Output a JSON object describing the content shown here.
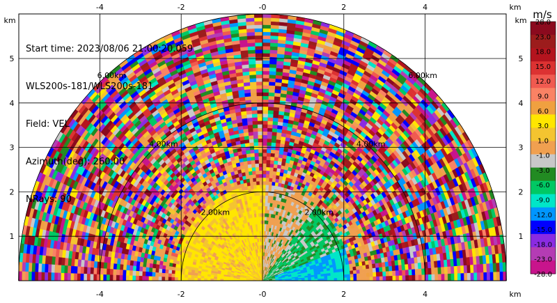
{
  "info": {
    "line1": "Start time: 2023/08/06 21:00:20.059",
    "line2": "WLS200s-181/WLS200s-181",
    "line3": "Field: VEL",
    "line4": "Azimuth(deg): 260.00",
    "line5": "NRays: 90"
  },
  "chart_data": {
    "type": "heatmap",
    "description_of_geometry": "RHI-style range/height sector plot",
    "x_axis": {
      "unit": "km",
      "range": [
        -6,
        6
      ],
      "ticks": [
        -4,
        -2,
        0,
        2,
        4
      ],
      "tick_labels": [
        "-4",
        "-2",
        "-0",
        "2",
        "4"
      ]
    },
    "y_axis": {
      "unit": "km",
      "range": [
        0,
        5.85
      ],
      "ticks": [
        1,
        2,
        3,
        4,
        5
      ],
      "tick_labels": [
        "1",
        "2",
        "3",
        "4",
        "5"
      ]
    },
    "range_rings": [
      {
        "range_km": 2,
        "label": "2.00km"
      },
      {
        "range_km": 4,
        "label": "4.00km"
      },
      {
        "range_km": 6,
        "label": "6.00km"
      }
    ],
    "max_range_km": 6,
    "colorbar": {
      "unit": "m/s",
      "labels": [
        "28.0",
        "23.0",
        "18.0",
        "15.0",
        "12.0",
        "9.0",
        "6.0",
        "3.0",
        "1.0",
        "-1.0",
        "-3.0",
        "-6.0",
        "-9.0",
        "-12.0",
        "-15.0",
        "-18.0",
        "-23.0",
        "-28.0"
      ],
      "colors": [
        "#8b0a1e",
        "#9c1c1c",
        "#b4141e",
        "#dc3232",
        "#f05a50",
        "#fa8264",
        "#f0a040",
        "#ffe600",
        "#f4c430",
        "#f0a050",
        "#c8c8c8",
        "#228b22",
        "#00c864",
        "#00e6c8",
        "#0096ff",
        "#0000ff",
        "#8a2be2",
        "#b43cb4",
        "#c8148c"
      ]
    },
    "regions": [
      {
        "name": "near-field left (receding)",
        "range_km": [
          0,
          2.0
        ],
        "value_mps": 6.0
      },
      {
        "name": "near-field mid",
        "range_km": [
          0,
          2.2
        ],
        "value_mps": 1.0
      },
      {
        "name": "near-field right (approaching)",
        "range_km": [
          0,
          1.8
        ],
        "value_mps": -6.0
      },
      {
        "name": "far field",
        "range_km": [
          2.2,
          6.0
        ],
        "value_mps": "noisy"
      }
    ]
  }
}
